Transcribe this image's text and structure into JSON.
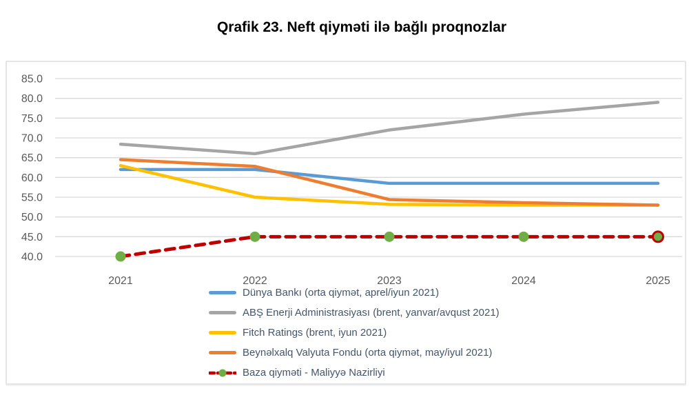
{
  "page": {
    "title": "Qrafik 23. Neft qiyməti ilə bağlı proqnozlar"
  },
  "chart_data": {
    "type": "line",
    "title": "Qrafik 23. Neft qiyməti ilə bağlı proqnozlar",
    "categories": [
      "2021",
      "2022",
      "2023",
      "2024",
      "2025"
    ],
    "series": [
      {
        "name": "Dünya Bankı (orta qiymət, aprel/iyun 2021)",
        "color": "#5B9BD5",
        "style": "solid",
        "values": [
          62.0,
          62.0,
          58.5,
          58.5,
          58.5
        ]
      },
      {
        "name": "ABŞ Enerji Administrasiyası (brent, yanvar/avqust 2021)",
        "color": "#A5A5A5",
        "style": "solid",
        "values": [
          68.4,
          66.0,
          72.0,
          76.0,
          79.0
        ]
      },
      {
        "name": "Fitch Ratings (brent, iyun 2021)",
        "color": "#FFC000",
        "style": "solid",
        "values": [
          63.0,
          55.0,
          53.2,
          53.0,
          53.0
        ]
      },
      {
        "name": "Beynəlxalq Valyuta Fondu (orta qiymət, may/iyul 2021)",
        "color": "#ED7D31",
        "style": "solid",
        "values": [
          64.5,
          62.8,
          54.4,
          53.6,
          53.0
        ]
      },
      {
        "name": "Baza qiyməti - Maliyyə Nazirliyi",
        "color": "#C00000",
        "style": "dashed",
        "marker": {
          "shape": "circle",
          "fill": "#70AD47",
          "last_point_ring": "#C00000"
        },
        "values": [
          40.0,
          45.0,
          45.0,
          45.0,
          45.0
        ]
      }
    ],
    "y_axis": {
      "min": 40,
      "max": 85,
      "step": 5,
      "tick_labels": [
        "85.0",
        "80.0",
        "75.0",
        "70.0",
        "65.0",
        "60.0",
        "55.0",
        "50.0",
        "45.0",
        "40.0"
      ]
    },
    "x_axis": {
      "tick_labels": [
        "2021",
        "2022",
        "2023",
        "2024",
        "2025"
      ]
    },
    "grid": "horizontal",
    "legend_position": "bottom-left",
    "colors": {
      "gridline": "#D9D9D9",
      "axis_text": "#595959",
      "legend_text": "#44546A",
      "frame_border": "#E4E4E4"
    }
  }
}
